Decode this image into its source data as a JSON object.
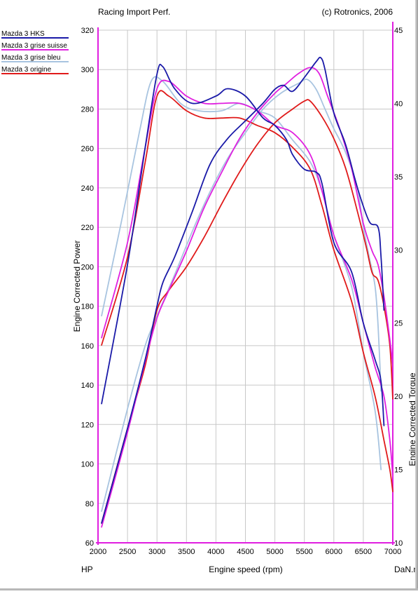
{
  "header": {
    "left": "Racing Import Perf.",
    "right": "(c) Rotronics, 2006"
  },
  "colors": {
    "background": "#ffffff",
    "grid": "#c8c8c8",
    "axis": "#e01ee0"
  },
  "chart_data": {
    "type": "line",
    "xlabel": "Engine speed (rpm)",
    "ylabel": "Engine Corrected Power",
    "y2label": "Engine Corrected Torque",
    "x_unit_left": "HP",
    "x_unit_right": "DaN.m",
    "xlim": [
      2000,
      7000
    ],
    "ylim": [
      60,
      320
    ],
    "y2lim": [
      10,
      45
    ],
    "xticks": [
      2000,
      2500,
      3000,
      3500,
      4000,
      4500,
      5000,
      5500,
      6000,
      6500,
      7000
    ],
    "yticks": [
      60,
      80,
      100,
      120,
      140,
      160,
      180,
      200,
      220,
      240,
      260,
      280,
      300,
      320
    ],
    "y2ticks": [
      10,
      15,
      20,
      25,
      30,
      35,
      40,
      45
    ],
    "grid": true,
    "legend_position": "top-left",
    "series": [
      {
        "name": "Mazda 3 HKS",
        "color": "#1a1aa8",
        "power": [
          [
            2060,
            70
          ],
          [
            2500,
            118
          ],
          [
            2800,
            153
          ],
          [
            3000,
            180
          ],
          [
            3100,
            192
          ],
          [
            3300,
            205
          ],
          [
            3600,
            228
          ],
          [
            3900,
            252
          ],
          [
            4200,
            265
          ],
          [
            4500,
            274
          ],
          [
            4800,
            283
          ],
          [
            5000,
            290
          ],
          [
            5150,
            292
          ],
          [
            5300,
            289
          ],
          [
            5500,
            296
          ],
          [
            5700,
            304
          ],
          [
            5780,
            306
          ],
          [
            5850,
            300
          ],
          [
            6000,
            278
          ],
          [
            6200,
            262
          ],
          [
            6400,
            240
          ],
          [
            6600,
            223
          ],
          [
            6750,
            220
          ],
          [
            6800,
            205
          ],
          [
            6850,
            178
          ]
        ],
        "torque": [
          [
            2060,
            19.5
          ],
          [
            2500,
            29
          ],
          [
            2800,
            37
          ],
          [
            3000,
            42
          ],
          [
            3100,
            42.5
          ],
          [
            3300,
            41
          ],
          [
            3600,
            40
          ],
          [
            4000,
            40.5
          ],
          [
            4200,
            41
          ],
          [
            4500,
            40.5
          ],
          [
            4800,
            39
          ],
          [
            5000,
            38.5
          ],
          [
            5200,
            37.5
          ],
          [
            5300,
            36.5
          ],
          [
            5500,
            35.5
          ],
          [
            5700,
            35.3
          ],
          [
            5800,
            34.5
          ],
          [
            6000,
            30.5
          ],
          [
            6300,
            28.5
          ],
          [
            6500,
            25
          ],
          [
            6700,
            22.5
          ],
          [
            6800,
            21
          ],
          [
            6850,
            18
          ]
        ]
      },
      {
        "name": "Mazda 3 grise suisse",
        "color": "#e020e0",
        "power": [
          [
            2060,
            68
          ],
          [
            2500,
            116
          ],
          [
            2800,
            152
          ],
          [
            3000,
            174
          ],
          [
            3200,
            188
          ],
          [
            3500,
            208
          ],
          [
            3800,
            230
          ],
          [
            4100,
            248
          ],
          [
            4400,
            265
          ],
          [
            4700,
            278
          ],
          [
            5000,
            288
          ],
          [
            5200,
            293
          ],
          [
            5400,
            298
          ],
          [
            5600,
            301
          ],
          [
            5750,
            298
          ],
          [
            5900,
            286
          ],
          [
            6100,
            270
          ],
          [
            6300,
            250
          ],
          [
            6500,
            222
          ],
          [
            6650,
            208
          ],
          [
            6750,
            201
          ],
          [
            6850,
            185
          ],
          [
            6950,
            163
          ],
          [
            7000,
            150
          ]
        ],
        "torque": [
          [
            2060,
            24
          ],
          [
            2500,
            30.5
          ],
          [
            2800,
            37
          ],
          [
            3000,
            41
          ],
          [
            3200,
            41.5
          ],
          [
            3500,
            40.5
          ],
          [
            3800,
            40
          ],
          [
            4100,
            40
          ],
          [
            4400,
            40
          ],
          [
            4700,
            39.5
          ],
          [
            5000,
            38.5
          ],
          [
            5300,
            38
          ],
          [
            5600,
            36.5
          ],
          [
            5800,
            34
          ],
          [
            6000,
            31
          ],
          [
            6300,
            28
          ],
          [
            6500,
            25
          ],
          [
            6700,
            22
          ],
          [
            6850,
            20
          ],
          [
            6950,
            17
          ],
          [
            7000,
            14.5
          ]
        ]
      },
      {
        "name": "Mazda 3 grise bleu",
        "color": "#a8c4e0",
        "power": [
          [
            2060,
            76
          ],
          [
            2500,
            128
          ],
          [
            2800,
            160
          ],
          [
            3000,
            175
          ],
          [
            3300,
            196
          ],
          [
            3600,
            218
          ],
          [
            3900,
            238
          ],
          [
            4200,
            255
          ],
          [
            4500,
            268
          ],
          [
            4800,
            280
          ],
          [
            5100,
            288
          ],
          [
            5400,
            293
          ],
          [
            5550,
            295
          ],
          [
            5700,
            290
          ],
          [
            5850,
            280
          ],
          [
            6000,
            270
          ],
          [
            6200,
            258
          ],
          [
            6400,
            240
          ],
          [
            6500,
            220
          ],
          [
            6600,
            205
          ],
          [
            6700,
            190
          ],
          [
            6750,
            170
          ],
          [
            6800,
            137
          ]
        ],
        "torque": [
          [
            2060,
            25.5
          ],
          [
            2400,
            32
          ],
          [
            2700,
            38
          ],
          [
            2900,
            41.5
          ],
          [
            3100,
            41.5
          ],
          [
            3400,
            40
          ],
          [
            3700,
            39.5
          ],
          [
            4100,
            39.5
          ],
          [
            4400,
            40
          ],
          [
            4700,
            39.5
          ],
          [
            5000,
            39
          ],
          [
            5300,
            37.5
          ],
          [
            5600,
            36
          ],
          [
            5800,
            34
          ],
          [
            6000,
            31
          ],
          [
            6300,
            27.5
          ],
          [
            6500,
            23
          ],
          [
            6700,
            19
          ],
          [
            6800,
            15
          ]
        ]
      },
      {
        "name": "Mazda 3 origine",
        "color": "#e01a1a",
        "power": [
          [
            2060,
            70
          ],
          [
            2500,
            118
          ],
          [
            2800,
            150
          ],
          [
            3000,
            178
          ],
          [
            3200,
            188
          ],
          [
            3500,
            200
          ],
          [
            3800,
            215
          ],
          [
            4100,
            232
          ],
          [
            4400,
            248
          ],
          [
            4700,
            262
          ],
          [
            5000,
            273
          ],
          [
            5300,
            280
          ],
          [
            5500,
            284
          ],
          [
            5600,
            284
          ],
          [
            5800,
            276
          ],
          [
            6000,
            265
          ],
          [
            6200,
            250
          ],
          [
            6400,
            228
          ],
          [
            6550,
            210
          ],
          [
            6650,
            197
          ],
          [
            6750,
            193
          ],
          [
            6850,
            180
          ],
          [
            6950,
            160
          ],
          [
            7000,
            133
          ]
        ],
        "torque": [
          [
            2060,
            23.5
          ],
          [
            2500,
            29.5
          ],
          [
            2800,
            36
          ],
          [
            3000,
            40.5
          ],
          [
            3200,
            40.5
          ],
          [
            3500,
            39.5
          ],
          [
            3800,
            39
          ],
          [
            4100,
            39
          ],
          [
            4400,
            39
          ],
          [
            4700,
            38.5
          ],
          [
            5000,
            38
          ],
          [
            5300,
            37
          ],
          [
            5600,
            35.5
          ],
          [
            5800,
            33
          ],
          [
            6000,
            30
          ],
          [
            6300,
            26.5
          ],
          [
            6500,
            23
          ],
          [
            6700,
            20
          ],
          [
            6850,
            17
          ],
          [
            6950,
            15
          ],
          [
            7000,
            13.5
          ]
        ]
      }
    ]
  }
}
